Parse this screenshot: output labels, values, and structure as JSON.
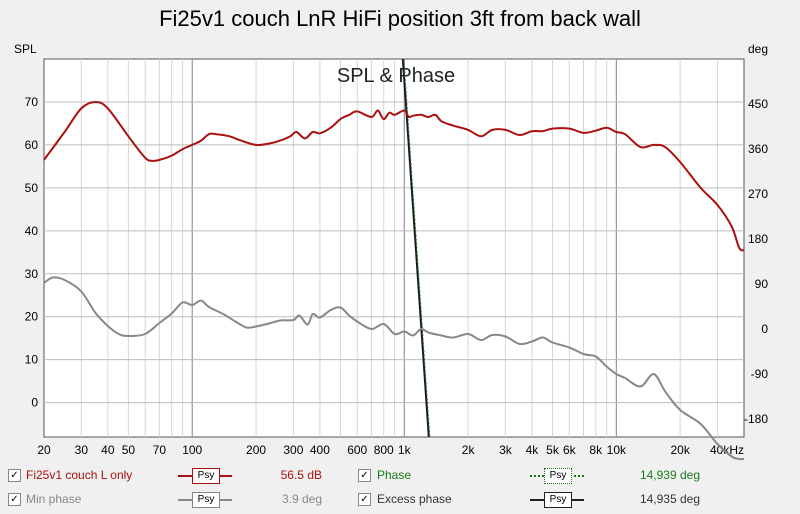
{
  "title": "Fi25v1 couch LnR HiFi position 3ft from back wall",
  "left_axis_unit": "SPL",
  "right_axis_unit": "deg",
  "legend": {
    "items": [
      {
        "label": "Fi25v1 couch L only",
        "value": "56.5 dB",
        "color": "#aa1111",
        "text_color": "#aa1111",
        "checked": "✓",
        "psy": "Psy"
      },
      {
        "label": "Min phase",
        "value": "3.9 deg",
        "color": "#888888",
        "text_color": "#888888",
        "checked": "✓",
        "psy": "Psy"
      },
      {
        "label": "Phase",
        "value": "14,939 deg",
        "color": "#1a7a1a",
        "text_color": "#1a7a1a",
        "checked": "✓",
        "psy": "Psy"
      },
      {
        "label": "Excess phase",
        "value": "14,935 deg",
        "color": "#222222",
        "text_color": "#333333",
        "checked": "✓",
        "psy": "Psy"
      }
    ]
  },
  "chart_data": {
    "type": "line",
    "title": "Fi25v1 couch LnR HiFi position 3ft from back wall",
    "annotation": "SPL & Phase",
    "x_scale": "log",
    "xlim": [
      20,
      40000
    ],
    "x_ticks": [
      {
        "value": 20,
        "label": "20"
      },
      {
        "value": 30,
        "label": "30"
      },
      {
        "value": 40,
        "label": "40"
      },
      {
        "value": 50,
        "label": "50"
      },
      {
        "value": 70,
        "label": "70"
      },
      {
        "value": 100,
        "label": "100"
      },
      {
        "value": 200,
        "label": "200"
      },
      {
        "value": 300,
        "label": "300"
      },
      {
        "value": 400,
        "label": "400"
      },
      {
        "value": 600,
        "label": "600"
      },
      {
        "value": 800,
        "label": "800"
      },
      {
        "value": 1000,
        "label": "1k"
      },
      {
        "value": 2000,
        "label": "2k"
      },
      {
        "value": 3000,
        "label": "3k"
      },
      {
        "value": 4000,
        "label": "4k"
      },
      {
        "value": 5000,
        "label": "5k"
      },
      {
        "value": 6000,
        "label": "6k"
      },
      {
        "value": 8000,
        "label": "8k"
      },
      {
        "value": 10000,
        "label": "10k"
      },
      {
        "value": 20000,
        "label": "20k"
      },
      {
        "value": 40000,
        "label": "40kHz"
      }
    ],
    "y_left": {
      "label": "SPL",
      "lim": [
        -8,
        80
      ],
      "ticks": [
        0,
        10,
        20,
        30,
        40,
        50,
        60,
        70
      ]
    },
    "y_right": {
      "label": "deg",
      "lim": [
        -216,
        540
      ],
      "ticks": [
        -180,
        -90,
        0,
        90,
        180,
        270,
        360,
        450
      ]
    },
    "grid": true,
    "marker_x": 1250,
    "series": [
      {
        "name": "Fi25v1 couch L only",
        "axis": "left",
        "color": "#aa1111",
        "x": [
          20,
          25,
          30,
          35,
          40,
          50,
          60,
          65,
          70,
          80,
          90,
          100,
          110,
          120,
          130,
          150,
          170,
          200,
          230,
          260,
          290,
          310,
          340,
          370,
          400,
          450,
          500,
          550,
          600,
          700,
          750,
          800,
          850,
          900,
          1000,
          1050,
          1100,
          1200,
          1300,
          1400,
          1500,
          1700,
          2000,
          2300,
          2600,
          3000,
          3500,
          4000,
          4500,
          5000,
          6000,
          7000,
          8000,
          9000,
          10000,
          11000,
          13000,
          15000,
          17000,
          20000,
          25000,
          30000,
          35000,
          38000,
          40000
        ],
        "values": [
          56.5,
          63,
          68.5,
          70,
          68.5,
          62,
          57,
          56.3,
          56.5,
          57.5,
          59,
          60,
          61,
          62.5,
          62.5,
          62,
          61,
          60,
          60.3,
          61,
          62,
          63,
          61.5,
          63,
          62.7,
          64,
          66,
          67,
          67.8,
          66.5,
          68,
          66,
          67.5,
          67,
          68,
          66.5,
          66.8,
          67,
          66.5,
          67,
          65.5,
          64.5,
          63.5,
          62,
          63.5,
          63.5,
          62.3,
          63.2,
          63.2,
          63.8,
          63.8,
          62.8,
          63.3,
          64,
          63,
          62.5,
          59.5,
          60,
          59.5,
          56,
          50,
          46,
          41,
          36,
          35.5
        ]
      },
      {
        "name": "Min phase",
        "axis": "right",
        "color": "#888888",
        "x": [
          20,
          22,
          25,
          30,
          35,
          40,
          45,
          50,
          60,
          70,
          80,
          90,
          100,
          110,
          120,
          140,
          160,
          180,
          200,
          230,
          260,
          300,
          320,
          350,
          370,
          400,
          450,
          500,
          550,
          600,
          700,
          800,
          900,
          1000,
          1100,
          1200,
          1300,
          1500,
          1700,
          2000,
          2300,
          2600,
          3000,
          3500,
          4000,
          4500,
          5000,
          6000,
          7000,
          8000,
          9000,
          10000,
          11000,
          13000,
          15000,
          17000,
          20000,
          25000,
          30000,
          35000,
          38000,
          40000
        ],
        "values": [
          92,
          103,
          98,
          75,
          32,
          6,
          -10,
          -14,
          -10,
          12,
          31,
          53,
          48,
          57,
          44,
          30,
          15,
          3,
          5,
          11,
          17,
          18,
          27,
          9,
          30,
          23,
          38,
          43,
          27,
          15,
          0,
          10,
          -10,
          -5,
          -13,
          0,
          -7,
          -13,
          -17,
          -10,
          -22,
          -12,
          -15,
          -30,
          -25,
          -17,
          -27,
          -37,
          -50,
          -55,
          -75,
          -90,
          -98,
          -115,
          -90,
          -125,
          -162,
          -190,
          -230,
          -255,
          -260,
          -260
        ]
      }
    ]
  }
}
